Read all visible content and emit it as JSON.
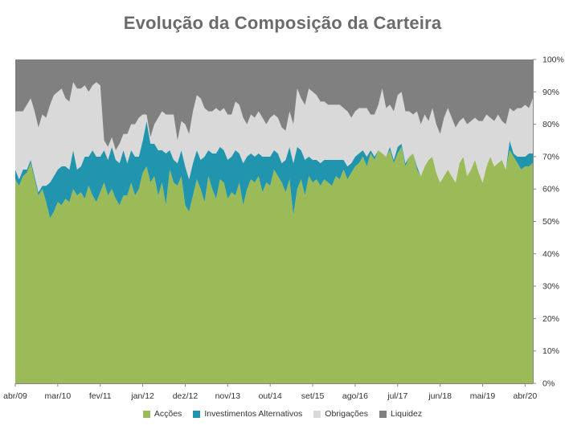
{
  "chart_data": {
    "type": "area",
    "stacked": true,
    "title": "Evolução da Composição da Carteira",
    "xlabel": "",
    "ylabel": "",
    "ylim": [
      0,
      100
    ],
    "y_ticks": [
      "0%",
      "10%",
      "20%",
      "30%",
      "40%",
      "50%",
      "60%",
      "70%",
      "80%",
      "90%",
      "100%"
    ],
    "x_ticks": [
      "abr/09",
      "mar/10",
      "fev/11",
      "jan/12",
      "dez/12",
      "nov/13",
      "out/14",
      "set/15",
      "ago/16",
      "jul/17",
      "jun/18",
      "mai/19",
      "abr/20"
    ],
    "legend_position": "bottom",
    "x_start": "abr/09",
    "period_months": 135,
    "series": [
      {
        "name": "Acções",
        "color": "#9bbb59",
        "values": [
          63,
          61,
          64,
          65,
          68,
          63,
          58,
          60,
          56,
          51,
          53,
          56,
          55,
          57,
          56,
          60,
          58,
          59,
          57,
          61,
          58,
          56,
          59,
          62,
          58,
          60,
          57,
          55,
          58,
          58,
          62,
          58,
          60,
          65,
          67,
          62,
          64,
          58,
          62,
          55,
          66,
          62,
          61,
          64,
          55,
          53,
          58,
          63,
          60,
          56,
          64,
          60,
          57,
          63,
          62,
          57,
          59,
          58,
          62,
          55,
          60,
          63,
          62,
          64,
          59,
          62,
          61,
          66,
          64,
          62,
          59,
          63,
          52,
          60,
          63,
          58,
          64,
          62,
          63,
          61,
          63,
          62,
          61,
          64,
          63,
          66,
          63,
          65,
          67,
          68,
          70,
          67,
          71,
          69,
          72,
          71,
          70,
          72,
          68,
          71,
          73,
          67,
          70,
          71,
          66,
          64,
          67,
          69,
          70,
          65,
          62,
          64,
          66,
          64,
          62,
          68,
          70,
          64,
          66,
          69,
          65,
          62,
          67,
          70,
          67,
          68,
          69,
          66,
          72,
          70,
          68,
          66,
          67,
          67,
          68
        ]
      },
      {
        "name": "Investimentos Alternativos",
        "color": "#2195ad",
        "values": [
          3,
          2,
          2,
          1,
          1,
          1,
          1,
          1,
          5,
          11,
          11,
          10,
          12,
          10,
          10,
          12,
          8,
          8,
          13,
          9,
          14,
          14,
          11,
          10,
          11,
          13,
          12,
          13,
          14,
          10,
          10,
          12,
          10,
          10,
          14,
          12,
          10,
          14,
          10,
          16,
          6,
          7,
          7,
          8,
          12,
          10,
          10,
          9,
          9,
          14,
          8,
          11,
          14,
          10,
          10,
          12,
          11,
          14,
          9,
          13,
          10,
          8,
          8,
          7,
          11,
          8,
          9,
          6,
          7,
          6,
          10,
          10,
          16,
          13,
          9,
          11,
          6,
          7,
          6,
          7,
          6,
          7,
          8,
          5,
          6,
          3,
          4,
          3,
          3,
          3,
          2,
          3,
          1,
          1,
          0,
          0,
          0,
          1,
          1,
          2,
          1,
          1,
          0,
          0,
          1,
          0,
          0,
          0,
          0,
          0,
          0,
          0,
          0,
          0,
          0,
          0,
          0,
          0,
          0,
          0,
          0,
          0,
          0,
          0,
          0,
          0,
          0,
          0,
          3,
          1,
          2,
          4,
          3,
          4,
          3
        ]
      },
      {
        "name": "Obrigações",
        "color": "#d9d9d9",
        "values": [
          18,
          21,
          18,
          20,
          19,
          20,
          20,
          22,
          21,
          24,
          25,
          24,
          24,
          21,
          21,
          21,
          25,
          24,
          22,
          20,
          20,
          23,
          22,
          3,
          4,
          3,
          3,
          6,
          5,
          9,
          8,
          10,
          12,
          8,
          2,
          2,
          6,
          10,
          12,
          12,
          11,
          14,
          7,
          9,
          13,
          14,
          16,
          17,
          19,
          15,
          12,
          13,
          14,
          11,
          13,
          14,
          13,
          15,
          15,
          14,
          10,
          12,
          12,
          13,
          12,
          10,
          12,
          11,
          11,
          11,
          9,
          11,
          12,
          18,
          16,
          17,
          21,
          21,
          20,
          19,
          18,
          17,
          17,
          17,
          17,
          16,
          17,
          14,
          14,
          14,
          13,
          15,
          11,
          13,
          14,
          20,
          15,
          13,
          15,
          16,
          16,
          16,
          14,
          12,
          17,
          16,
          16,
          12,
          15,
          15,
          15,
          18,
          19,
          18,
          17,
          13,
          12,
          16,
          15,
          13,
          16,
          19,
          16,
          12,
          14,
          15,
          12,
          14,
          10,
          13,
          15,
          15,
          16,
          14,
          17
        ]
      },
      {
        "name": "Liquidez",
        "color": "#808080",
        "values": [
          16,
          16,
          16,
          14,
          12,
          16,
          21,
          17,
          18,
          14,
          11,
          10,
          9,
          12,
          13,
          7,
          9,
          9,
          8,
          10,
          8,
          7,
          8,
          25,
          27,
          24,
          28,
          26,
          23,
          23,
          20,
          20,
          18,
          17,
          17,
          24,
          20,
          18,
          16,
          17,
          17,
          17,
          25,
          19,
          20,
          23,
          16,
          11,
          12,
          15,
          16,
          16,
          15,
          16,
          15,
          17,
          17,
          13,
          14,
          18,
          20,
          17,
          18,
          16,
          18,
          20,
          18,
          17,
          18,
          21,
          22,
          16,
          20,
          9,
          12,
          14,
          9,
          10,
          11,
          13,
          13,
          14,
          14,
          14,
          14,
          15,
          16,
          18,
          16,
          15,
          15,
          15,
          17,
          17,
          14,
          9,
          15,
          14,
          16,
          11,
          10,
          16,
          16,
          17,
          16,
          20,
          17,
          19,
          15,
          20,
          23,
          18,
          15,
          18,
          21,
          19,
          18,
          20,
          19,
          18,
          19,
          19,
          17,
          18,
          19,
          17,
          19,
          20,
          15,
          16,
          15,
          15,
          14,
          15,
          12
        ]
      }
    ]
  }
}
